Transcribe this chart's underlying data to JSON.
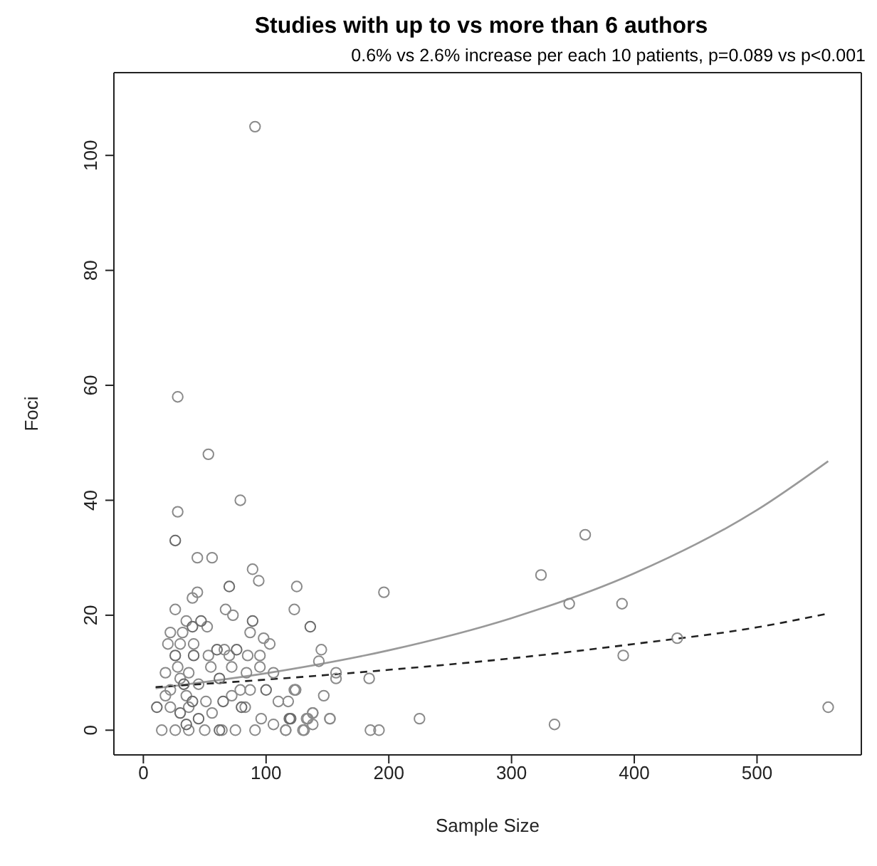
{
  "chart_data": {
    "type": "scatter",
    "title": "Studies with up to vs more than 6 authors",
    "subtitle": "0.6% vs 2.6% increase per each 10 patients, p=0.089 vs p<0.001",
    "xlabel": "Sample Size",
    "ylabel": "Foci",
    "xlim": [
      -24,
      585
    ],
    "ylim": [
      -4.3,
      114.4
    ],
    "xticks": [
      0,
      100,
      200,
      300,
      400,
      500
    ],
    "yticks": [
      0,
      20,
      40,
      60,
      80,
      100
    ],
    "series": [
      {
        "color": "#8a8a8a",
        "marker": "circle",
        "x": [
          91,
          28,
          53,
          79,
          28,
          44,
          56,
          89,
          94,
          125,
          44,
          40,
          123,
          26,
          67,
          73,
          35,
          52,
          22,
          32,
          87,
          98,
          103,
          20,
          30,
          41,
          53,
          66,
          70,
          85,
          95,
          18,
          28,
          37,
          55,
          72,
          84,
          95,
          106,
          30,
          45,
          22,
          79,
          87,
          18,
          35,
          51,
          72,
          110,
          118,
          123,
          147,
          22,
          37,
          56,
          83,
          96,
          133,
          138,
          152,
          15,
          26,
          37,
          50,
          64,
          75,
          91,
          106,
          116,
          131,
          124,
          196,
          145,
          143,
          157,
          157,
          184,
          124,
          138,
          134,
          152,
          138,
          116,
          130,
          185,
          192,
          225,
          335,
          324,
          347,
          390,
          391,
          435,
          558,
          360
        ],
        "values": [
          105,
          58,
          48,
          40,
          38,
          30,
          30,
          28,
          26,
          25,
          24,
          23,
          21,
          21,
          21,
          20,
          19,
          18,
          17,
          17,
          17,
          16,
          15,
          15,
          15,
          15,
          13,
          14,
          13,
          13,
          13,
          10,
          11,
          10,
          11,
          11,
          10,
          11,
          10,
          9,
          8,
          7,
          7,
          7,
          6,
          6,
          5,
          6,
          5,
          5,
          7,
          6,
          4,
          4,
          3,
          4,
          2,
          2,
          3,
          2,
          0,
          0,
          0,
          0,
          0,
          0,
          0,
          1,
          0,
          0,
          7,
          24,
          14,
          12,
          10,
          9,
          9,
          7,
          3,
          2,
          2,
          1,
          0,
          0,
          0,
          0,
          2,
          1,
          27,
          22,
          22,
          13,
          16,
          4,
          34
        ]
      },
      {
        "color": "#6a6a6a",
        "marker": "circle",
        "x": [
          26,
          70,
          89,
          136,
          40,
          47,
          60,
          76,
          26,
          41,
          62,
          100,
          11,
          119,
          120,
          30,
          35,
          40,
          45,
          62,
          65,
          33,
          80
        ],
        "values": [
          33,
          25,
          19,
          18,
          18,
          19,
          14,
          14,
          13,
          13,
          9,
          7,
          4,
          2,
          2,
          3,
          1,
          5,
          2,
          0,
          5,
          8,
          4
        ]
      },
      {
        "type": "line",
        "color": "#999999",
        "marker": "none",
        "line_style": "solid",
        "x": [
          10,
          100,
          200,
          300,
          400,
          500,
          558
        ],
        "values": [
          7.3,
          9.9,
          13.9,
          19.5,
          27.3,
          38.3,
          46.8
        ]
      },
      {
        "type": "line",
        "color": "#222222",
        "marker": "none",
        "line_style": "dashed",
        "x": [
          10,
          100,
          200,
          300,
          400,
          500,
          558
        ],
        "values": [
          7.5,
          8.8,
          10.5,
          12.5,
          15.0,
          17.9,
          20.3
        ]
      }
    ]
  }
}
